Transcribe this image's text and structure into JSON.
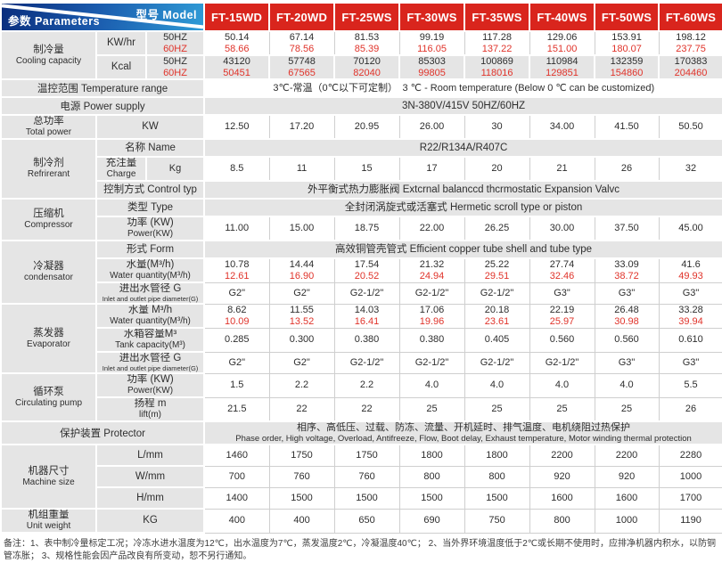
{
  "colors": {
    "model_header_bg": "#d9251d",
    "red_value_text": "#e0332a",
    "gray_band": "#e5e5e5",
    "header_gradient_start": "#0a2d7d",
    "header_gradient_end": "#2f9bd6"
  },
  "table": {
    "corner": {
      "top_right": "型号 Model",
      "bottom_left": "参数 Parameters"
    },
    "models": [
      "FT-15WD",
      "FT-20WD",
      "FT-25WS",
      "FT-30WS",
      "FT-35WS",
      "FT-40WS",
      "FT-50WS",
      "FT-60WS"
    ],
    "rows": [
      {
        "category": {
          "zh": "制冷量",
          "en": "Cooling capacity",
          "span_rows": 2
        },
        "sub": "KW/hr",
        "unit": [
          "50HZ",
          "60HZ"
        ],
        "band": "white",
        "values": [
          [
            "50.14",
            "58.66"
          ],
          [
            "67.14",
            "78.56"
          ],
          [
            "81.53",
            "85.39"
          ],
          [
            "99.19",
            "116.05"
          ],
          [
            "117.28",
            "137.22"
          ],
          [
            "129.06",
            "151.00"
          ],
          [
            "153.91",
            "180.07"
          ],
          [
            "198.12",
            "237.75"
          ]
        ]
      },
      {
        "sub": "Kcal",
        "unit": [
          "50HZ",
          "60HZ"
        ],
        "band": "gray",
        "values": [
          [
            "43120",
            "50451"
          ],
          [
            "57748",
            "67565"
          ],
          [
            "70120",
            "82040"
          ],
          [
            "85303",
            "99805"
          ],
          [
            "100869",
            "118016"
          ],
          [
            "110984",
            "129851"
          ],
          [
            "132359",
            "154860"
          ],
          [
            "170383",
            "204460"
          ]
        ]
      },
      {
        "label": "温控范围 Temperature range",
        "band": "white",
        "merged": "3℃-常温（0℃以下可定制）　3 ℃ - Room temperature (Below 0 ℃ can be customized)"
      },
      {
        "label": "电源 Power supply",
        "band": "gray",
        "merged": "3N-380V/415V 50HZ/60HZ"
      },
      {
        "category": {
          "zh": "总功率",
          "en": "Total power",
          "span_rows": 1
        },
        "sub": "KW",
        "band": "white",
        "values": [
          "12.50",
          "17.20",
          "20.95",
          "26.00",
          "30",
          "34.00",
          "41.50",
          "50.50"
        ]
      },
      {
        "category": {
          "zh": "制冷剂",
          "en": "Refrirerant",
          "span_rows": 3
        },
        "sub": "名称 Name",
        "band": "gray",
        "merged": "R22/R134A/R407C"
      },
      {
        "sub": {
          "zh": "充注量",
          "en": "Charge"
        },
        "unit": [
          "Kg"
        ],
        "band": "white",
        "values": [
          "8.5",
          "11",
          "15",
          "17",
          "20",
          "21",
          "26",
          "32"
        ]
      },
      {
        "sub": "控制方式 Control typ",
        "band": "gray",
        "merged": "外平衡式热力膨胀阀 Extcrnal balanccd thcrmostatic Expansion Valvc"
      },
      {
        "category": {
          "zh": "压缩机",
          "en": "Compressor",
          "span_rows": 2
        },
        "sub": "类型 Type",
        "band": "gray",
        "merged": "全封闭涡旋式或活塞式 Hermetic scroll type or piston"
      },
      {
        "sub": {
          "zh": "功率 (KW)",
          "en": "Power(KW)"
        },
        "band": "white",
        "values": [
          "11.00",
          "15.00",
          "18.75",
          "22.00",
          "26.25",
          "30.00",
          "37.50",
          "45.00"
        ]
      },
      {
        "category": {
          "zh": "冷凝器",
          "en": "condensator",
          "span_rows": 3
        },
        "sub": "形式 Form",
        "band": "gray",
        "merged": "高效铜管壳管式 Efficient copper tube shell and tube type"
      },
      {
        "sub": {
          "zh": "水量(M³/h)",
          "en": "Water quantity(M³/h)"
        },
        "band": "white",
        "values": [
          [
            "10.78",
            "12.61"
          ],
          [
            "14.44",
            "16.90"
          ],
          [
            "17.54",
            "20.52"
          ],
          [
            "21.32",
            "24.94"
          ],
          [
            "25.22",
            "29.51"
          ],
          [
            "27.74",
            "32.46"
          ],
          [
            "33.09",
            "38.72"
          ],
          [
            "41.6",
            "49.93"
          ]
        ]
      },
      {
        "sub": {
          "zh": "进出水管径 G",
          "en": "Inlet and outlet pipe diameter(G)"
        },
        "band": "white",
        "values": [
          "G2\"",
          "G2\"",
          "G2-1/2\"",
          "G2-1/2\"",
          "G2-1/2\"",
          "G3\"",
          "G3\"",
          "G3\""
        ]
      },
      {
        "category": {
          "zh": "蒸发器",
          "en": "Evaporator",
          "span_rows": 3
        },
        "sub": {
          "zh": "水量 M³/h",
          "en": "Water quantity(M³/h)"
        },
        "band": "white",
        "values": [
          [
            "8.62",
            "10.09"
          ],
          [
            "11.55",
            "13.52"
          ],
          [
            "14.03",
            "16.41"
          ],
          [
            "17.06",
            "19.96"
          ],
          [
            "20.18",
            "23.61"
          ],
          [
            "22.19",
            "25.97"
          ],
          [
            "26.48",
            "30.98"
          ],
          [
            "33.28",
            "39.94"
          ]
        ]
      },
      {
        "sub": {
          "zh": "水箱容量M³",
          "en": "Tank capacity(M³)"
        },
        "band": "white",
        "values": [
          "0.285",
          "0.300",
          "0.380",
          "0.380",
          "0.405",
          "0.560",
          "0.560",
          "0.610"
        ]
      },
      {
        "sub": {
          "zh": "进出水管径 G",
          "en": "Inlet and outlet pipe diameter(G)"
        },
        "band": "white",
        "values": [
          "G2\"",
          "G2\"",
          "G2-1/2\"",
          "G2-1/2\"",
          "G2-1/2\"",
          "G2-1/2\"",
          "G3\"",
          "G3\""
        ]
      },
      {
        "category": {
          "zh": "循环泵",
          "en": "Circulating pump",
          "span_rows": 2
        },
        "sub": {
          "zh": "功率 (KW)",
          "en": "Power(KW)"
        },
        "band": "white",
        "values": [
          "1.5",
          "2.2",
          "2.2",
          "4.0",
          "4.0",
          "4.0",
          "4.0",
          "5.5"
        ]
      },
      {
        "sub": {
          "zh": "扬程 m",
          "en": "lift(m)"
        },
        "band": "white",
        "values": [
          "21.5",
          "22",
          "22",
          "25",
          "25",
          "25",
          "25",
          "26"
        ]
      },
      {
        "label": "保护装置 Protector",
        "band": "gray",
        "merged": [
          "相序、高低压、过载、防冻、流量、开机延时、排气温度、电机绕阻过热保护",
          "Phase order, High voltage, Overload, Antifreeze, Flow, Boot delay, Exhaust temperature, Motor winding thermal protection"
        ]
      },
      {
        "category": {
          "zh": "机器尺寸",
          "en": "Machine size",
          "span_rows": 3
        },
        "sub": "L/mm",
        "band": "white",
        "values": [
          "1460",
          "1750",
          "1750",
          "1800",
          "1800",
          "2200",
          "2200",
          "2280"
        ]
      },
      {
        "sub": "W/mm",
        "band": "white",
        "values": [
          "700",
          "760",
          "760",
          "800",
          "800",
          "920",
          "920",
          "1000"
        ]
      },
      {
        "sub": "H/mm",
        "band": "white",
        "values": [
          "1400",
          "1500",
          "1500",
          "1500",
          "1500",
          "1600",
          "1600",
          "1700"
        ]
      },
      {
        "category": {
          "zh": "机组重量",
          "en": "Unit weight",
          "span_rows": 1
        },
        "sub": "KG",
        "band": "white",
        "values": [
          "400",
          "400",
          "650",
          "690",
          "750",
          "800",
          "1000",
          "1190"
        ]
      }
    ]
  },
  "notes": "备注：1、表中制冷量标定工况；冷冻水进水温度为12℃，出水温度为7℃，蒸发温度2℃，冷凝温度40℃；  2、当外界环境温度低于2℃或长期不使用时，应排净机器内积水，以防铜管冻胀；  3、规格性能会因产品改良有所变动，恕不另行通知。"
}
